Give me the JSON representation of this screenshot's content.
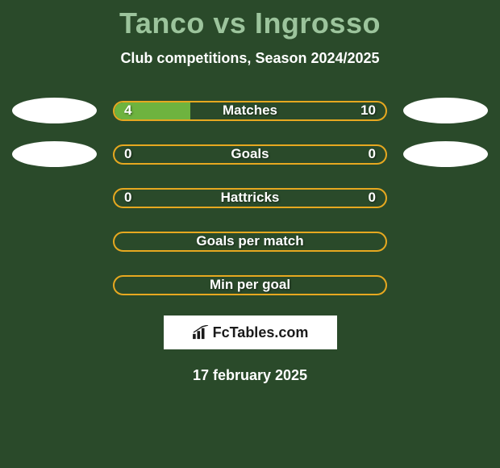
{
  "title": "Tanco vs Ingrosso",
  "subtitle": "Club competitions, Season 2024/2025",
  "date": "17 february 2025",
  "brand": "FcTables.com",
  "colors": {
    "background": "#2a4a2a",
    "title": "#9cc49c",
    "text_white": "#ffffff",
    "fill_green": "#6eb33f",
    "border_orange": "#e6a820",
    "ellipse": "#ffffff"
  },
  "ellipses": {
    "rows_with_ellipses": [
      0,
      1
    ],
    "left_offsets": [
      8,
      18
    ],
    "right_offsets": [
      8,
      18
    ]
  },
  "stats": [
    {
      "label": "Matches",
      "left_value": "4",
      "right_value": "10",
      "left_fill_pct": 28,
      "fill_color": "#6eb33f",
      "border_color": "#e6a820",
      "show_values": true
    },
    {
      "label": "Goals",
      "left_value": "0",
      "right_value": "0",
      "left_fill_pct": 0,
      "fill_color": "#6eb33f",
      "border_color": "#e6a820",
      "show_values": true
    },
    {
      "label": "Hattricks",
      "left_value": "0",
      "right_value": "0",
      "left_fill_pct": 0,
      "fill_color": "#6eb33f",
      "border_color": "#e6a820",
      "show_values": true
    },
    {
      "label": "Goals per match",
      "left_value": "",
      "right_value": "",
      "left_fill_pct": 0,
      "fill_color": "#6eb33f",
      "border_color": "#e6a820",
      "show_values": false
    },
    {
      "label": "Min per goal",
      "left_value": "",
      "right_value": "",
      "left_fill_pct": 0,
      "fill_color": "#6eb33f",
      "border_color": "#e6a820",
      "show_values": false
    }
  ]
}
